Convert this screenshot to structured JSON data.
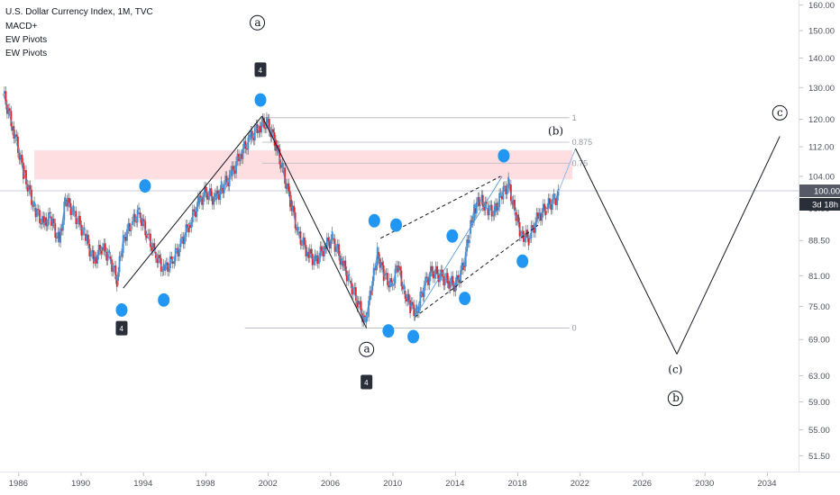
{
  "header": {
    "title": "U.S. Dollar Currency Index, 1M, TVC",
    "indicators": [
      "MACD+",
      "EW Pivots",
      "EW Pivots"
    ]
  },
  "price_tag": {
    "value": "100.00",
    "countdown": "3d 18h"
  },
  "colors": {
    "up_candle": "#3b8fd9",
    "down_candle": "#e2252b",
    "bubble": "#2196f3",
    "resistance_zone": "#ffd6da",
    "projection": "#131722"
  },
  "chart_data": {
    "type": "line",
    "x_tick_labels": [
      "1986",
      "1990",
      "1994",
      "1998",
      "2002",
      "2006",
      "2010",
      "2014",
      "2018",
      "2022",
      "2026",
      "2030",
      "2034"
    ],
    "x_tick_years": [
      1986,
      1990,
      1994,
      1998,
      2002,
      2006,
      2010,
      2014,
      2018,
      2022,
      2026,
      2030,
      2034
    ],
    "xlim": [
      1984.8,
      2036.0
    ],
    "y_scale": "log",
    "y_tick_labels": [
      "160.00",
      "150.00",
      "140.00",
      "130.00",
      "120.00",
      "112.00",
      "104.00",
      "96.00",
      "88.50",
      "81.00",
      "75.00",
      "69.00",
      "63.00",
      "59.00",
      "55.00",
      "51.50"
    ],
    "y_ticks": [
      160,
      150,
      140,
      130,
      120,
      112,
      104,
      96,
      88.5,
      81,
      75,
      69,
      63,
      59,
      55,
      51.5
    ],
    "ylim": [
      49.5,
      162
    ],
    "grid": false,
    "series": [
      {
        "x": [
          1985.0,
          1985.6,
          1986.3,
          1987.0,
          1987.6,
          1988.0,
          1988.6,
          1989.0,
          1989.5,
          1990.2,
          1990.8,
          1991.3,
          1991.8,
          1992.3,
          1992.7,
          1993.2,
          1993.7,
          1994.2,
          1994.7,
          1995.3,
          1995.8,
          1996.3,
          1996.9,
          1997.5,
          1998.0,
          1998.6,
          1999.0,
          1999.6,
          2000.2,
          2000.8,
          2001.4,
          2001.9,
          2002.4,
          2002.9,
          2003.4,
          2003.9,
          2004.5,
          2005.0,
          2005.6,
          2006.1,
          2006.7,
          2007.2,
          2007.7,
          2008.2,
          2008.6,
          2009.0,
          2009.4,
          2009.9,
          2010.3,
          2010.7,
          2011.1,
          2011.5,
          2012.0,
          2012.5,
          2013.0,
          2013.5,
          2014.0,
          2014.5,
          2014.9,
          2015.2,
          2015.6,
          2016.0,
          2016.5,
          2016.9,
          2017.4,
          2017.8,
          2018.2,
          2018.7,
          2019.3,
          2019.8,
          2020.3,
          2020.6
        ],
        "y": [
          128,
          118,
          105,
          96,
          92,
          94,
          88,
          98,
          95,
          90,
          84,
          87,
          85,
          80,
          89,
          92,
          95,
          90,
          86,
          82,
          84,
          87,
          92,
          97,
          100,
          98,
          101,
          104,
          110,
          114,
          118,
          119,
          114,
          106,
          98,
          90,
          86,
          84,
          87,
          89,
          84,
          80,
          76,
          72,
          78,
          86,
          81,
          79,
          83,
          78,
          75,
          74,
          79,
          82,
          81,
          80,
          79,
          83,
          90,
          96,
          98,
          96,
          95,
          99,
          102,
          95,
          90,
          89,
          94,
          96,
          98,
          99
        ]
      }
    ],
    "projection": {
      "x": [
        2020.6,
        2021.7,
        2028.2,
        2034.8
      ],
      "y": [
        100,
        111.5,
        66.5,
        115
      ]
    },
    "fib_levels": [
      {
        "label": "1",
        "value": 120.5
      },
      {
        "label": "0.875",
        "value": 113.3
      },
      {
        "label": "0.75",
        "value": 107.5
      },
      {
        "label": "0",
        "value": 71.0
      }
    ],
    "resistance_zone": {
      "x": [
        1987.0,
        2021.5
      ],
      "y": [
        103.2,
        111.0
      ]
    },
    "elliott_waves": [
      {
        "from_x": 1992.7,
        "from_y": 78.5,
        "to_x": 2001.6,
        "to_y": 121.0
      },
      {
        "from_x": 2001.6,
        "from_y": 121.0,
        "to_x": 2008.3,
        "to_y": 71.0
      }
    ],
    "corrective_channel": {
      "upper": {
        "from_x": 2009.2,
        "from_y": 89.0,
        "to_x": 2016.9,
        "to_y": 104.0
      },
      "lower": {
        "from_x": 2011.4,
        "from_y": 73.0,
        "to_x": 2019.3,
        "to_y": 92.0
      }
    },
    "bubbles": [
      {
        "x": 1994.1,
        "y": 101.5
      },
      {
        "x": 1992.6,
        "y": 74.3
      },
      {
        "x": 1995.3,
        "y": 76.2
      },
      {
        "x": 2001.5,
        "y": 126.0
      },
      {
        "x": 2008.8,
        "y": 93.0
      },
      {
        "x": 2010.2,
        "y": 92.0
      },
      {
        "x": 2009.7,
        "y": 70.5
      },
      {
        "x": 2011.3,
        "y": 69.5
      },
      {
        "x": 2013.8,
        "y": 89.5
      },
      {
        "x": 2014.6,
        "y": 76.5
      },
      {
        "x": 2017.1,
        "y": 109.5
      },
      {
        "x": 2018.3,
        "y": 84.0
      }
    ],
    "pivot_tags": [
      {
        "label": "4",
        "x": 2001.5,
        "y": 136.0
      },
      {
        "label": "4",
        "x": 1992.6,
        "y": 71.0
      },
      {
        "label": "4",
        "x": 2008.3,
        "y": 62.0
      }
    ],
    "wave_labels": [
      {
        "label": "a",
        "x": 2001.3,
        "y": 153.0,
        "circled": true
      },
      {
        "label": "(b)",
        "x": 2020.4,
        "y": 116.5,
        "circled": false
      },
      {
        "label": "c",
        "x": 2034.8,
        "y": 122.0,
        "circled": true
      },
      {
        "label": "a",
        "x": 2008.3,
        "y": 67.3,
        "circled": true
      },
      {
        "label": "(c)",
        "x": 2028.1,
        "y": 64.0,
        "circled": false
      },
      {
        "label": "b",
        "x": 2028.1,
        "y": 59.5,
        "circled": true
      }
    ]
  }
}
